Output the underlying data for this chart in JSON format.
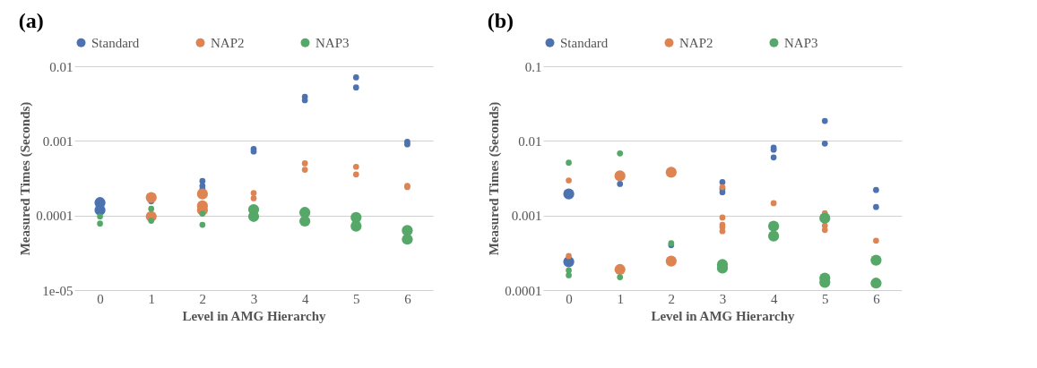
{
  "chart_data": [
    {
      "type": "bubble",
      "title": "(a)",
      "xlabel": "Level in AMG Hierarchy",
      "ylabel": "Measured Times (Seconds)",
      "xlim": [
        -0.5,
        6.5
      ],
      "xticks": [
        0,
        1,
        2,
        3,
        4,
        5,
        6
      ],
      "ylim": [
        1e-05,
        0.01
      ],
      "yticks": [
        {
          "value": 1e-05,
          "label": "1e-05"
        },
        0.0001,
        0.001,
        0.01
      ],
      "log": true,
      "grid": "y",
      "legend": "top",
      "series": [
        {
          "name": "Standard",
          "color": "#4c72b0",
          "x": [
            0,
            0,
            1,
            2,
            2,
            2,
            3,
            3,
            4,
            4,
            5,
            5,
            6,
            6
          ],
          "values": [
            0.000149,
            0.000118,
            0.000155,
            0.00029,
            0.00025,
            0.000225,
            0.00078,
            0.00072,
            0.0039,
            0.0035,
            0.0071,
            0.0052,
            0.00097,
            0.0009
          ],
          "sizes": [
            1,
            1,
            0.3,
            0.3,
            0.3,
            0.3,
            0.3,
            0.3,
            0.3,
            0.3,
            0.3,
            0.3,
            0.3,
            0.3
          ]
        },
        {
          "name": "NAP2",
          "color": "#dd8452",
          "x": [
            1,
            1,
            2,
            2,
            2,
            3,
            3,
            4,
            4,
            5,
            5,
            6,
            6
          ],
          "values": [
            0.000174,
            9.7e-05,
            0.000194,
            0.000135,
            0.000118,
            0.0002,
            0.00017,
            0.0005,
            0.00041,
            0.00045,
            0.000355,
            0.00025,
            0.00024
          ],
          "sizes": [
            1,
            1,
            1,
            1,
            1,
            0.3,
            0.3,
            0.3,
            0.3,
            0.3,
            0.3,
            0.3,
            0.3
          ]
        },
        {
          "name": "NAP3",
          "color": "#55a868",
          "x": [
            0,
            0,
            1,
            1,
            2,
            2,
            3,
            3,
            4,
            4,
            5,
            5,
            6,
            6
          ],
          "values": [
            9.7e-05,
            7.8e-05,
            0.000123,
            8.5e-05,
            0.000106,
            7.5e-05,
            0.00012,
            9.7e-05,
            0.00011,
            8.4e-05,
            9.4e-05,
            7.2e-05,
            6.3e-05,
            4.8e-05
          ],
          "sizes": [
            0.3,
            0.3,
            0.3,
            0.3,
            0.3,
            0.3,
            1,
            1,
            1,
            1,
            1,
            1,
            1,
            1
          ]
        }
      ]
    },
    {
      "type": "bubble",
      "title": "(b)",
      "xlabel": "Level in AMG Hierarchy",
      "ylabel": "Measured Times (Seconds)",
      "xlim": [
        -0.5,
        6.5
      ],
      "xticks": [
        0,
        1,
        2,
        3,
        4,
        5,
        6
      ],
      "ylim": [
        0.0001,
        0.1
      ],
      "yticks": [
        0.0001,
        0.001,
        0.01,
        0.1
      ],
      "log": true,
      "grid": "y",
      "legend": "top",
      "series": [
        {
          "name": "Standard",
          "color": "#4c72b0",
          "x": [
            0,
            0,
            1,
            2,
            3,
            3,
            3,
            4,
            4,
            4,
            5,
            5,
            6,
            6
          ],
          "values": [
            0.00194,
            0.00024,
            0.00265,
            0.0004,
            0.0028,
            0.00227,
            0.00205,
            0.0081,
            0.0076,
            0.006,
            0.0185,
            0.0092,
            0.0022,
            0.0013
          ],
          "sizes": [
            1,
            1,
            0.3,
            0.3,
            0.3,
            0.3,
            0.3,
            0.3,
            0.3,
            0.3,
            0.3,
            0.3,
            0.3,
            0.3
          ]
        },
        {
          "name": "NAP2",
          "color": "#dd8452",
          "x": [
            0,
            0,
            1,
            1,
            2,
            2,
            3,
            3,
            3,
            3,
            3,
            4,
            5,
            5,
            5,
            6
          ],
          "values": [
            0.00295,
            0.000286,
            0.0034,
            0.000189,
            0.0038,
            0.000245,
            0.0024,
            0.00094,
            0.00075,
            0.0007,
            0.000615,
            0.00146,
            0.00107,
            0.00073,
            0.00064,
            0.00046
          ],
          "sizes": [
            0.3,
            0.3,
            1,
            1,
            1,
            1,
            0.3,
            0.3,
            0.3,
            0.3,
            0.3,
            0.3,
            0.3,
            0.3,
            0.3,
            0.3
          ]
        },
        {
          "name": "NAP3",
          "color": "#55a868",
          "x": [
            0,
            0,
            0,
            1,
            1,
            2,
            3,
            3,
            4,
            4,
            5,
            5,
            5,
            6,
            6
          ],
          "values": [
            0.0051,
            0.000184,
            0.000158,
            0.0068,
            0.000149,
            0.000425,
            0.00022,
            0.000197,
            0.00072,
            0.00053,
            0.00092,
            0.000145,
            0.000127,
            0.000252,
            0.000124
          ],
          "sizes": [
            0.3,
            0.3,
            0.3,
            0.3,
            0.3,
            0.3,
            1,
            1,
            1,
            1,
            1,
            1,
            1,
            1,
            1
          ]
        }
      ]
    }
  ]
}
